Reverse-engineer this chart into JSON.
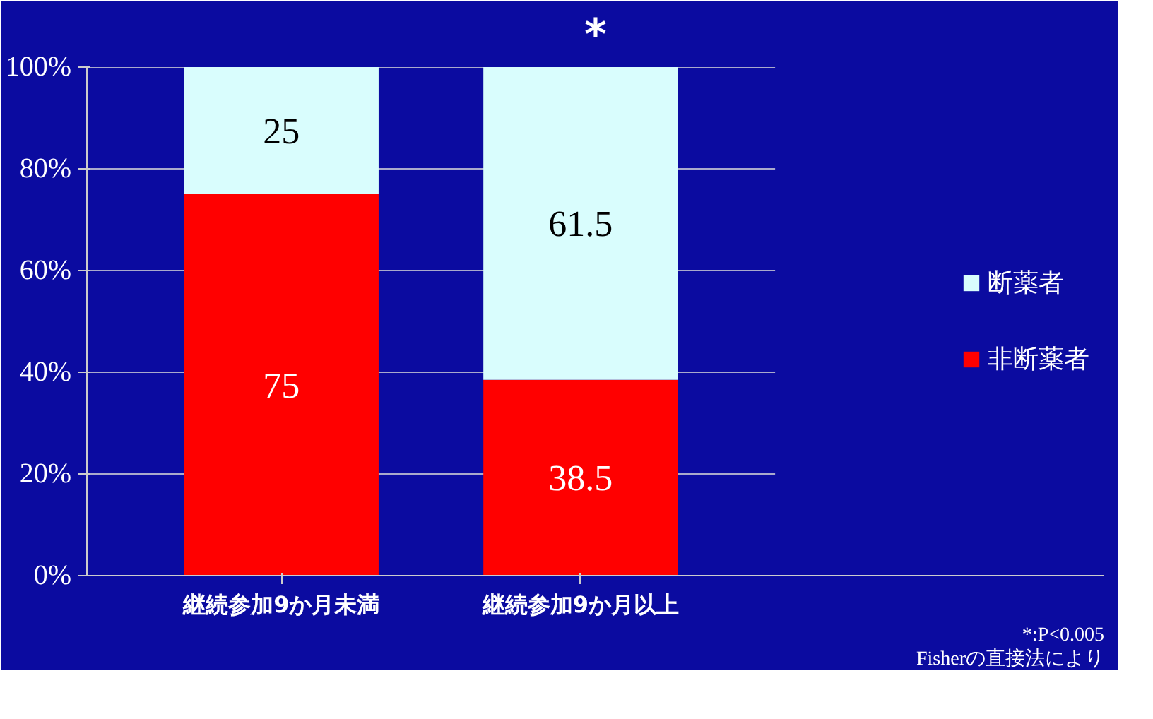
{
  "chart_data": {
    "type": "bar",
    "stacked": true,
    "categories": [
      "継続参加9か月未満",
      "継続参加9か月以上"
    ],
    "series": [
      {
        "name": "非断薬者",
        "color": "#ff0000",
        "values": [
          75,
          38.5
        ]
      },
      {
        "name": "断薬者",
        "color": "#d9fdfd",
        "values": [
          25,
          61.5
        ]
      }
    ],
    "ylim": [
      0,
      100
    ],
    "yticks": [
      {
        "value": 0,
        "label": "0%"
      },
      {
        "value": 20,
        "label": "20%"
      },
      {
        "value": 40,
        "label": "40%"
      },
      {
        "value": 60,
        "label": "60%"
      },
      {
        "value": 80,
        "label": "80%"
      },
      {
        "value": 100,
        "label": "100%"
      }
    ],
    "grid": "y",
    "legend": "right",
    "data_labels": true,
    "annotations": [
      "*",
      "*:P<0.005",
      "Fisherの直接法により"
    ]
  }
}
